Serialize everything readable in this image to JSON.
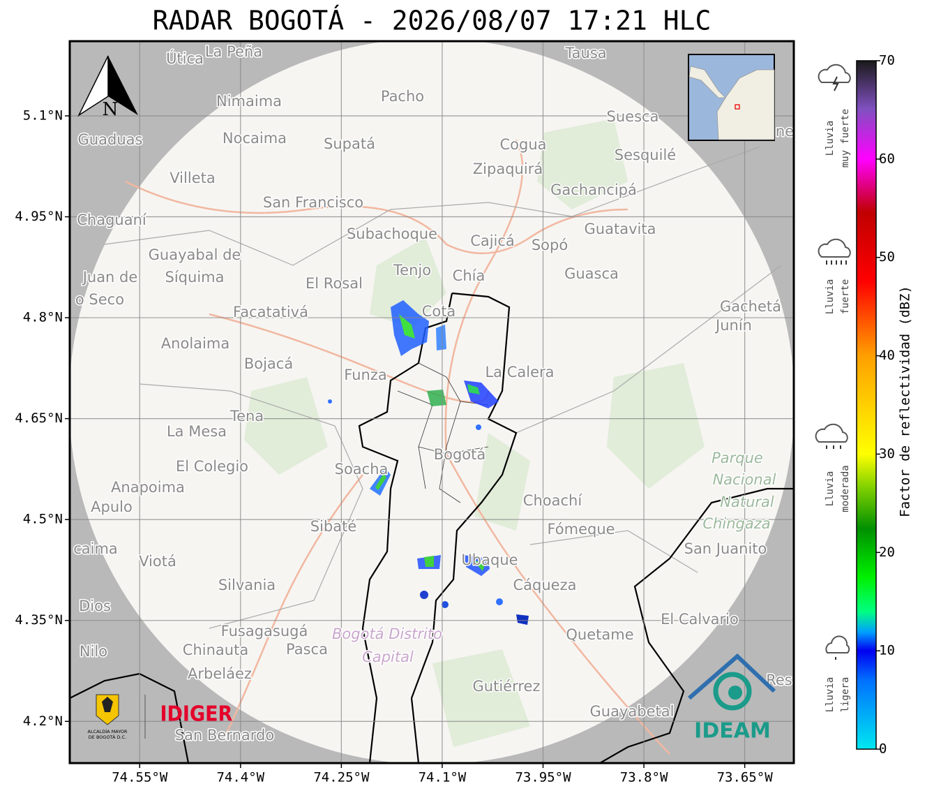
{
  "title": "RADAR BOGOTÁ - 2026/08/07 17:21 HLC",
  "map": {
    "xlim": [
      -74.654,
      -73.577
    ],
    "ylim": [
      4.138,
      5.211
    ],
    "xticks": [
      {
        "value": -74.55,
        "label": "74.55°W"
      },
      {
        "value": -74.4,
        "label": "74.4°W"
      },
      {
        "value": -74.25,
        "label": "74.25°W"
      },
      {
        "value": -74.1,
        "label": "74.1°W"
      },
      {
        "value": -73.95,
        "label": "73.95°W"
      },
      {
        "value": -73.8,
        "label": "73.8°W"
      },
      {
        "value": -73.65,
        "label": "73.65°W"
      }
    ],
    "yticks": [
      {
        "value": 5.1,
        "label": "5.1°N"
      },
      {
        "value": 4.95,
        "label": "4.95°N"
      },
      {
        "value": 4.8,
        "label": "4.8°N"
      },
      {
        "value": 4.65,
        "label": "4.65°N"
      },
      {
        "value": 4.5,
        "label": "4.5°N"
      },
      {
        "value": 4.35,
        "label": "4.35°N"
      },
      {
        "value": 4.2,
        "label": "4.2°N"
      }
    ],
    "places": [
      "Útica",
      "La Peña",
      "Tausa",
      "Pacho",
      "Nimaima",
      "Suesca",
      "Guaduas",
      "Nocaima",
      "Supatá",
      "Cogua",
      "Sesquilé",
      "Zipaquirá",
      "Villeta",
      "Gachancipá",
      "San Francisco",
      "Chaguaní",
      "Guatavita",
      "Subachoque",
      "Cajicá",
      "Sopó",
      "Guayabal de",
      "Síquima",
      "Juan de",
      "o Seco",
      "Tenjo",
      "Chía",
      "Guasca",
      "El Rosal",
      "Facatativá",
      "Cota",
      "Gachetá",
      "Junín",
      "Anolaima",
      "Bojacá",
      "La Calera",
      "Funza",
      "Tena",
      "La Mesa",
      "Bogotá",
      "El Colegio",
      "Soacha",
      "Anapoima",
      "Apulo",
      "Choachí",
      "Sibaté",
      "Fómeque",
      "caima",
      "San Juanito",
      "Viotá",
      "Ubaque",
      "Silvania",
      "Cáqueza",
      "Dios",
      "El Calvario",
      "Fusagasugá",
      "Quetame",
      "Nilo",
      "Chinauta",
      "Pasca",
      "Arbeláez",
      "Gutiérrez",
      "Res",
      "Guayabetal",
      "San Bernardo",
      "ne"
    ],
    "park": [
      "Parque",
      "Nacional",
      "Natural",
      "Chingaza"
    ],
    "capital": [
      "Bogotá Distrito",
      "Capital"
    ],
    "north": "N"
  },
  "colorbar": {
    "range": [
      0,
      70
    ],
    "ticks": [
      0,
      10,
      20,
      30,
      40,
      50,
      60,
      70
    ],
    "label": "Factor de reflectividad (dBZ)"
  },
  "intensity_legend": [
    [
      "Lluvia",
      "muy fuerte"
    ],
    [
      "Lluvia",
      "fuerte"
    ],
    [
      "Lluvia",
      "moderada"
    ],
    [
      "Lluvia",
      "ligera"
    ]
  ],
  "logos": {
    "alcaldia": [
      "ALCALDÍA MAYOR",
      "DE BOGOTÁ D.C."
    ],
    "idiger": "IDIGER",
    "ideam": "IDEAM"
  }
}
